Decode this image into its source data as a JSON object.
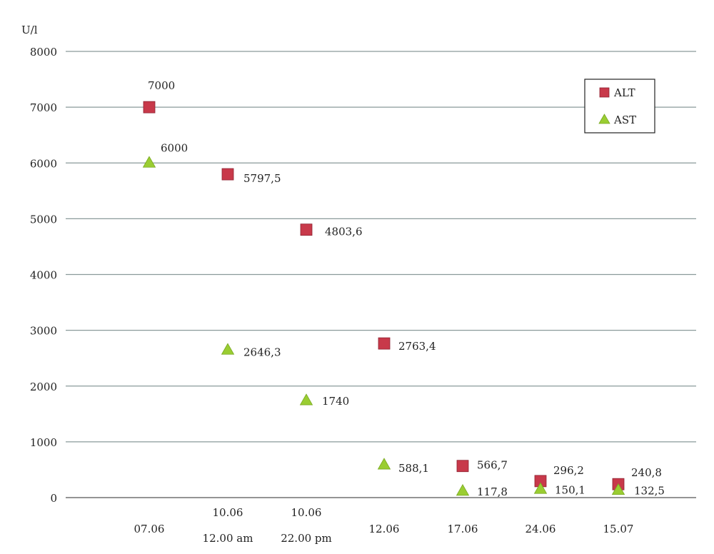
{
  "chart_data": {
    "type": "scatter",
    "ylabel": "U/l",
    "ylim": [
      0,
      8000
    ],
    "yticks": [
      "0",
      "1000",
      "2000",
      "3000",
      "4000",
      "5000",
      "6000",
      "7000",
      "8000"
    ],
    "grid": true,
    "legend_position": "top-right",
    "categories": [
      [
        "07.06"
      ],
      [
        "10.06",
        "12.00 am"
      ],
      [
        "10.06",
        "22.00 pm"
      ],
      [
        "12.06"
      ],
      [
        "17.06"
      ],
      [
        "24.06"
      ],
      [
        "15.07"
      ]
    ],
    "series": [
      {
        "name": "ALT",
        "marker": "square",
        "color": "#c8394a",
        "values": [
          7000,
          5797.5,
          4803.6,
          2763.4,
          566.7,
          296.2,
          240.8
        ],
        "labels": [
          "7000",
          "5797,5",
          "4803,6",
          "2763,4",
          "566,7",
          "296,2",
          "240,8"
        ]
      },
      {
        "name": "AST",
        "marker": "triangle",
        "color": "#9acd32",
        "values": [
          6000,
          2646.3,
          1740,
          588.1,
          117.8,
          150.1,
          132.5
        ],
        "labels": [
          "6000",
          "2646,3",
          "1740",
          "588,1",
          "117,8",
          "150,1",
          "132,5"
        ]
      }
    ]
  }
}
